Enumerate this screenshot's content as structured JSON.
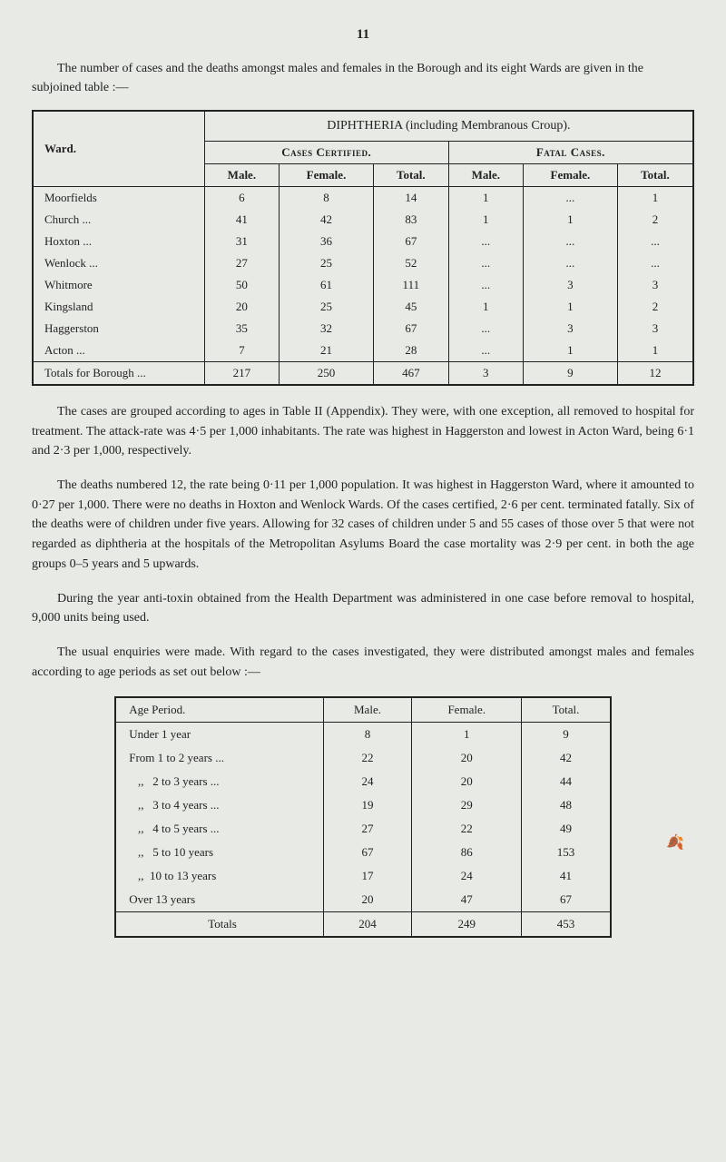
{
  "page_number": "11",
  "intro_text": "The number of cases and the deaths amongst males and females in the Borough and its eight Wards are given in the subjoined table :—",
  "table1": {
    "header_main": "DIPHTHERIA (including Membranous Croup).",
    "ward_label": "Ward.",
    "group1": "Cases Certified.",
    "group2": "Fatal Cases.",
    "cols": [
      "Male.",
      "Female.",
      "Total.",
      "Male.",
      "Female.",
      "Total."
    ],
    "rows": [
      {
        "ward": "Moorfields",
        "v": [
          "6",
          "8",
          "14",
          "1",
          "...",
          "1"
        ]
      },
      {
        "ward": "Church ...",
        "v": [
          "41",
          "42",
          "83",
          "1",
          "1",
          "2"
        ]
      },
      {
        "ward": "Hoxton ...",
        "v": [
          "31",
          "36",
          "67",
          "...",
          "...",
          "..."
        ]
      },
      {
        "ward": "Wenlock ...",
        "v": [
          "27",
          "25",
          "52",
          "...",
          "...",
          "..."
        ]
      },
      {
        "ward": "Whitmore",
        "v": [
          "50",
          "61",
          "111",
          "...",
          "3",
          "3"
        ]
      },
      {
        "ward": "Kingsland",
        "v": [
          "20",
          "25",
          "45",
          "1",
          "1",
          "2"
        ]
      },
      {
        "ward": "Haggerston",
        "v": [
          "35",
          "32",
          "67",
          "...",
          "3",
          "3"
        ]
      },
      {
        "ward": "Acton ...",
        "v": [
          "7",
          "21",
          "28",
          "...",
          "1",
          "1"
        ]
      }
    ],
    "total_label": "Totals for Borough ...",
    "totals": [
      "217",
      "250",
      "467",
      "3",
      "9",
      "12"
    ]
  },
  "para1": "The cases are grouped according to ages in Table II (Appendix). They were, with one exception, all removed to hospital for treatment. The attack-rate was 4·5 per 1,000 inhabitants. The rate was highest in Haggerston and lowest in Acton Ward, being 6·1 and 2·3 per 1,000, respectively.",
  "para2": "The deaths numbered 12, the rate being 0·11 per 1,000 population. It was highest in Haggerston Ward, where it amounted to 0·27 per 1,000. There were no deaths in Hoxton and Wenlock Wards. Of the cases certified, 2·6 per cent. terminated fatally. Six of the deaths were of children under five years. Allowing for 32 cases of children under 5 and 55 cases of those over 5 that were not regarded as diphtheria at the hospitals of the Metropolitan Asylums Board the case mortality was 2·9 per cent. in both the age groups 0–5 years and 5 upwards.",
  "para3": "During the year anti-toxin obtained from the Health Department was administered in one case before removal to hospital, 9,000 units being used.",
  "para4": "The usual enquiries were made. With regard to the cases investigated, they were distributed amongst males and females according to age periods as set out below :—",
  "table2": {
    "headers": [
      "Age Period.",
      "Male.",
      "Female.",
      "Total."
    ],
    "rows": [
      {
        "lbl": "Under 1 year",
        "v": [
          "8",
          "1",
          "9"
        ]
      },
      {
        "lbl": "From 1 to 2 years ...",
        "v": [
          "22",
          "20",
          "42"
        ]
      },
      {
        "lbl": "   ,,   2 to 3 years ...",
        "v": [
          "24",
          "20",
          "44"
        ]
      },
      {
        "lbl": "   ,,   3 to 4 years ...",
        "v": [
          "19",
          "29",
          "48"
        ]
      },
      {
        "lbl": "   ,,   4 to 5 years ...",
        "v": [
          "27",
          "22",
          "49"
        ]
      },
      {
        "lbl": "   ,,   5 to 10 years",
        "v": [
          "67",
          "86",
          "153"
        ]
      },
      {
        "lbl": "   ,,  10 to 13 years",
        "v": [
          "17",
          "24",
          "41"
        ]
      },
      {
        "lbl": "Over 13 years",
        "v": [
          "20",
          "47",
          "67"
        ]
      }
    ],
    "total_label": "Totals",
    "totals": [
      "204",
      "249",
      "453"
    ]
  }
}
